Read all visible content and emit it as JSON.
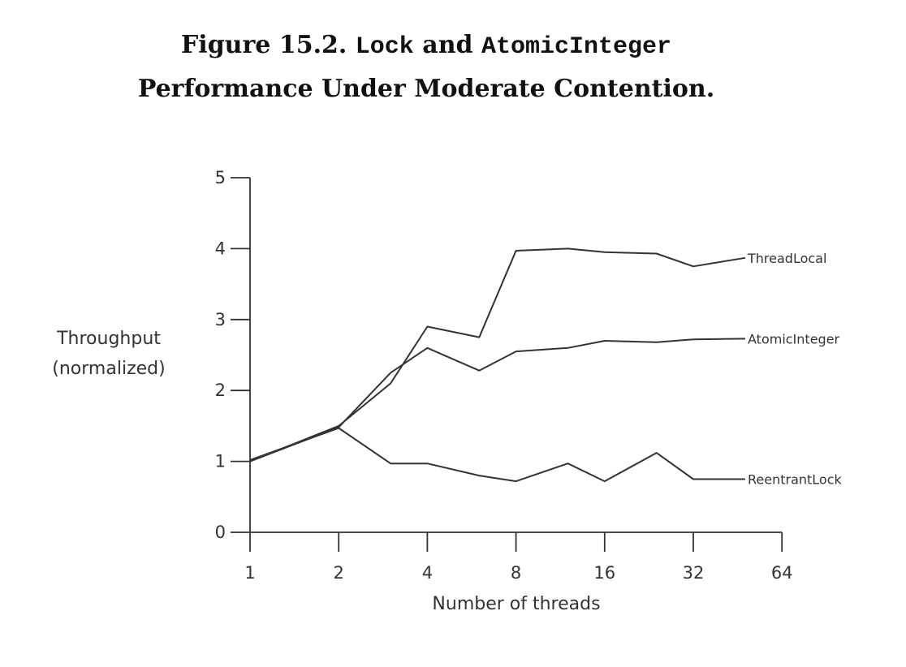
{
  "figure": {
    "number": "Figure 15.2.",
    "code1": "Lock",
    "and": "and",
    "code2": "AtomicInteger",
    "line2": "Performance Under Moderate Contention."
  },
  "chart_data": {
    "type": "line",
    "xlabel": "Number of threads",
    "ylabel_line1": "Throughput",
    "ylabel_line2": "(normalized)",
    "x_scale": "log2",
    "x_ticks": [
      1,
      2,
      4,
      8,
      16,
      32,
      64
    ],
    "y_ticks": [
      0,
      1,
      2,
      3,
      4,
      5
    ],
    "ylim": [
      0,
      5
    ],
    "grid": false,
    "legend": "inline labels at right end of each line",
    "x": [
      1,
      2,
      3,
      4,
      6,
      8,
      12,
      16,
      24,
      32,
      48
    ],
    "series": [
      {
        "name": "ThreadLocal",
        "values": [
          1.0,
          1.5,
          2.1,
          2.9,
          2.75,
          3.97,
          4.0,
          3.95,
          3.93,
          3.75,
          3.87
        ]
      },
      {
        "name": "AtomicInteger",
        "values": [
          1.0,
          1.48,
          2.25,
          2.6,
          2.28,
          2.55,
          2.6,
          2.7,
          2.68,
          2.72,
          2.73
        ]
      },
      {
        "name": "ReentrantLock",
        "values": [
          1.02,
          1.47,
          0.97,
          0.97,
          0.8,
          0.72,
          0.97,
          0.72,
          1.12,
          0.75,
          0.75
        ]
      }
    ]
  }
}
